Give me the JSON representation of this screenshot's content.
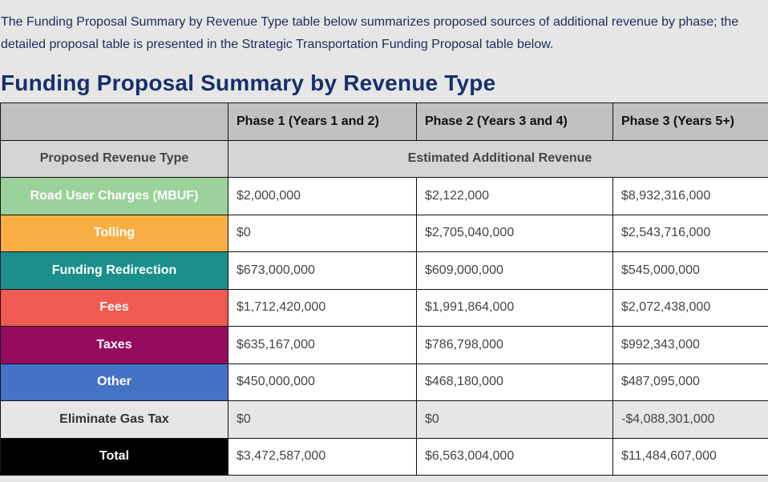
{
  "intro": "The Funding Proposal Summary by Revenue Type table below summarizes proposed sources of additional revenue by phase; the detailed proposal table is presented in the Strategic Transportation Funding Proposal table below.",
  "title": "Funding Proposal Summary by Revenue Type",
  "table": {
    "phase_headers": [
      "",
      "Phase 1 (Years 1 and 2)",
      "Phase 2 (Years 3 and 4)",
      "Phase 3 (Years 5+)"
    ],
    "row_header": "Proposed Revenue Type",
    "group_header": "Estimated Additional Revenue",
    "rows": [
      {
        "label": "Road User Charges (MBUF)",
        "color": "#9bd19b",
        "values": [
          "$2,000,000",
          "$2,122,000",
          "$8,932,316,000"
        ]
      },
      {
        "label": "Tolling",
        "color": "#f9ae43",
        "values": [
          "$0",
          "$2,705,040,000",
          "$2,543,716,000"
        ]
      },
      {
        "label": "Funding Redirection",
        "color": "#1b8f8c",
        "values": [
          "$673,000,000",
          "$609,000,000",
          "$545,000,000"
        ]
      },
      {
        "label": "Fees",
        "color": "#f05a50",
        "values": [
          "$1,712,420,000",
          "$1,991,864,000",
          "$2,072,438,000"
        ]
      },
      {
        "label": "Taxes",
        "color": "#950c5f",
        "values": [
          "$635,167,000",
          "$786,798,000",
          "$992,343,000"
        ]
      },
      {
        "label": "Other",
        "color": "#4472c4",
        "values": [
          "$450,000,000",
          "$468,180,000",
          "$487,095,000"
        ]
      },
      {
        "label": "Eliminate Gas Tax",
        "color": "#e6e6e6",
        "values": [
          "$0",
          "$0",
          "-$4,088,301,000"
        ]
      },
      {
        "label": "Total",
        "color": "#000000",
        "values": [
          "$3,472,587,000",
          "$6,563,004,000",
          "$11,484,607,000"
        ]
      }
    ]
  }
}
